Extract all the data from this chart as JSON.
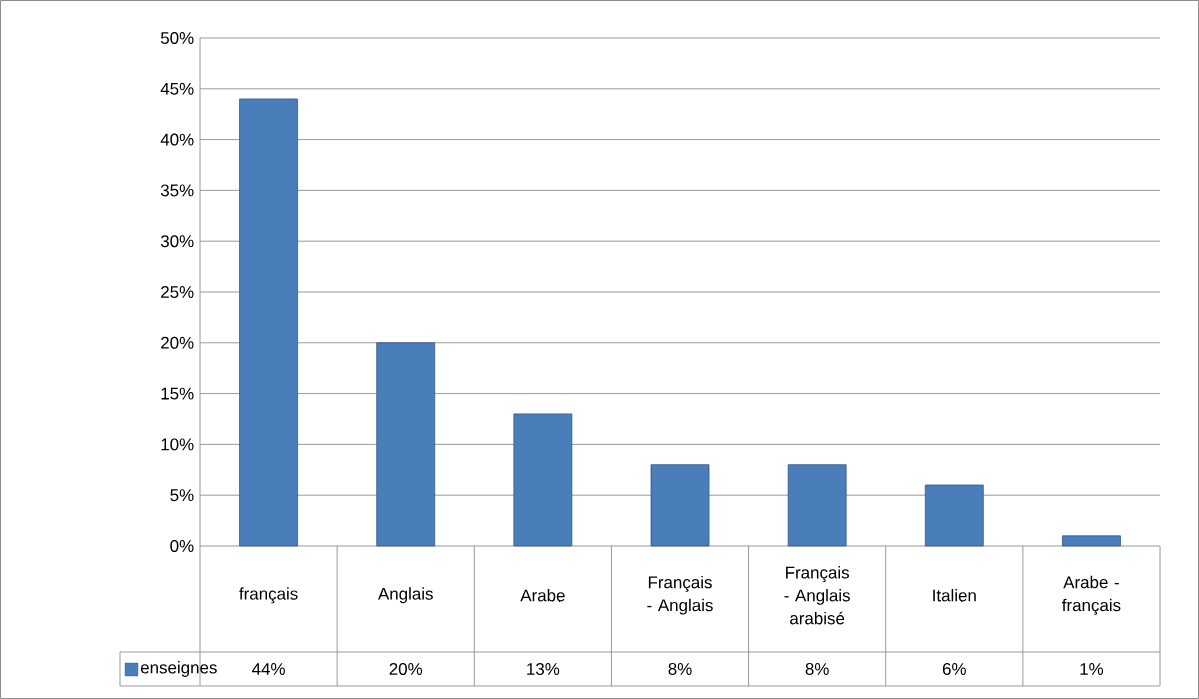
{
  "chart_data": {
    "type": "bar",
    "categories": [
      "français",
      "Anglais",
      "Arabe",
      "Français - Anglais",
      "Français - Anglais arabisé",
      "Italien",
      "Arabe - français"
    ],
    "series": [
      {
        "name": "enseignes",
        "color": "#4a7ebb",
        "values": [
          44,
          20,
          13,
          8,
          8,
          6,
          1
        ],
        "value_labels": [
          "44%",
          "20%",
          "13%",
          "8%",
          "8%",
          "6%",
          "1%"
        ]
      }
    ],
    "ylim": [
      0,
      50
    ],
    "yticks": [
      {
        "value": 0,
        "label": "0%"
      },
      {
        "value": 5,
        "label": "5%"
      },
      {
        "value": 10,
        "label": "10%"
      },
      {
        "value": 15,
        "label": "15%"
      },
      {
        "value": 20,
        "label": "20%"
      },
      {
        "value": 25,
        "label": "25%"
      },
      {
        "value": 30,
        "label": "30%"
      },
      {
        "value": 35,
        "label": "35%"
      },
      {
        "value": 40,
        "label": "40%"
      },
      {
        "value": 45,
        "label": "45%"
      },
      {
        "value": 50,
        "label": "50%"
      }
    ],
    "grid": "y",
    "legend": "bottom left"
  }
}
